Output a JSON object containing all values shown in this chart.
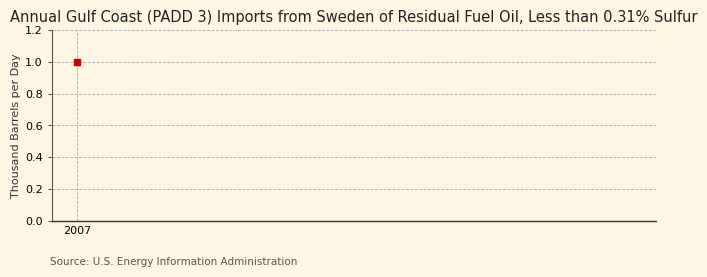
{
  "title": "Annual Gulf Coast (PADD 3) Imports from Sweden of Residual Fuel Oil, Less than 0.31% Sulfur",
  "ylabel": "Thousand Barrels per Day",
  "source": "Source: U.S. Energy Information Administration",
  "x_data": [
    2007
  ],
  "y_data": [
    1.0
  ],
  "xlim": [
    2006.6,
    2016.0
  ],
  "ylim": [
    0.0,
    1.2
  ],
  "yticks": [
    0.0,
    0.2,
    0.4,
    0.6,
    0.8,
    1.0,
    1.2
  ],
  "xticks": [
    2007
  ],
  "background_color": "#fdf6e3",
  "plot_bg_color": "#fdf6e3",
  "grid_color": "#aaaaaa",
  "point_color": "#cc0000",
  "point_size": 4,
  "title_fontsize": 10.5,
  "label_fontsize": 8,
  "tick_fontsize": 8,
  "source_fontsize": 7.5
}
